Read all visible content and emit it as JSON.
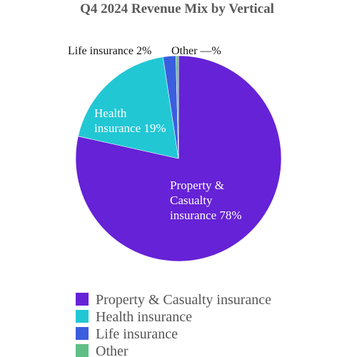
{
  "chart_data": {
    "type": "pie",
    "title": "Q4 2024 Revenue Mix by Vertical",
    "slices": [
      {
        "name": "Property & Casualty insurance",
        "value": 78,
        "color": "#6622d6",
        "label_lines": [
          "Property &",
          "Casualty",
          "insurance 78%"
        ]
      },
      {
        "name": "Health insurance",
        "value": 19,
        "color": "#22c7d4",
        "label_lines": [
          "Health",
          "insurance 19%"
        ]
      },
      {
        "name": "Life insurance",
        "value": 2,
        "color": "#3b5ede",
        "label_lines": [
          "Life insurance 2%"
        ]
      },
      {
        "name": "Other",
        "value": 0.4,
        "color": "#5fbf86",
        "label_lines": [
          "Other —%"
        ]
      }
    ],
    "legend_position": "bottom-left"
  }
}
